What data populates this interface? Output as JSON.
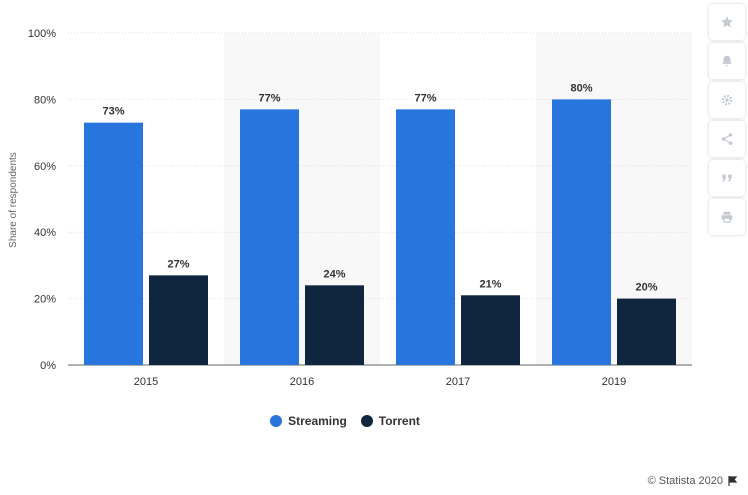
{
  "chart_data": {
    "type": "bar",
    "categories": [
      "2015",
      "2016",
      "2017",
      "2019"
    ],
    "series": [
      {
        "name": "Streaming",
        "color": "#2876dd",
        "values": [
          73,
          77,
          77,
          80
        ],
        "labels": [
          "73%",
          "77%",
          "77%",
          "80%"
        ]
      },
      {
        "name": "Torrent",
        "color": "#10263f",
        "values": [
          27,
          24,
          21,
          20
        ],
        "labels": [
          "27%",
          "24%",
          "21%",
          "20%"
        ]
      }
    ],
    "ylabel": "Share of respondents",
    "ylim": [
      0,
      100
    ],
    "yticks": [
      0,
      20,
      40,
      60,
      80,
      100
    ],
    "ytick_labels": [
      "0%",
      "20%",
      "40%",
      "60%",
      "80%",
      "100%"
    ],
    "grid": true,
    "legend": "bottom-center"
  },
  "legend": {
    "streaming": "Streaming",
    "torrent": "Torrent"
  },
  "toolbar": [
    "star-icon",
    "bell-icon",
    "gear-icon",
    "share-icon",
    "quote-icon",
    "print-icon"
  ],
  "credit": "© Statista 2020"
}
